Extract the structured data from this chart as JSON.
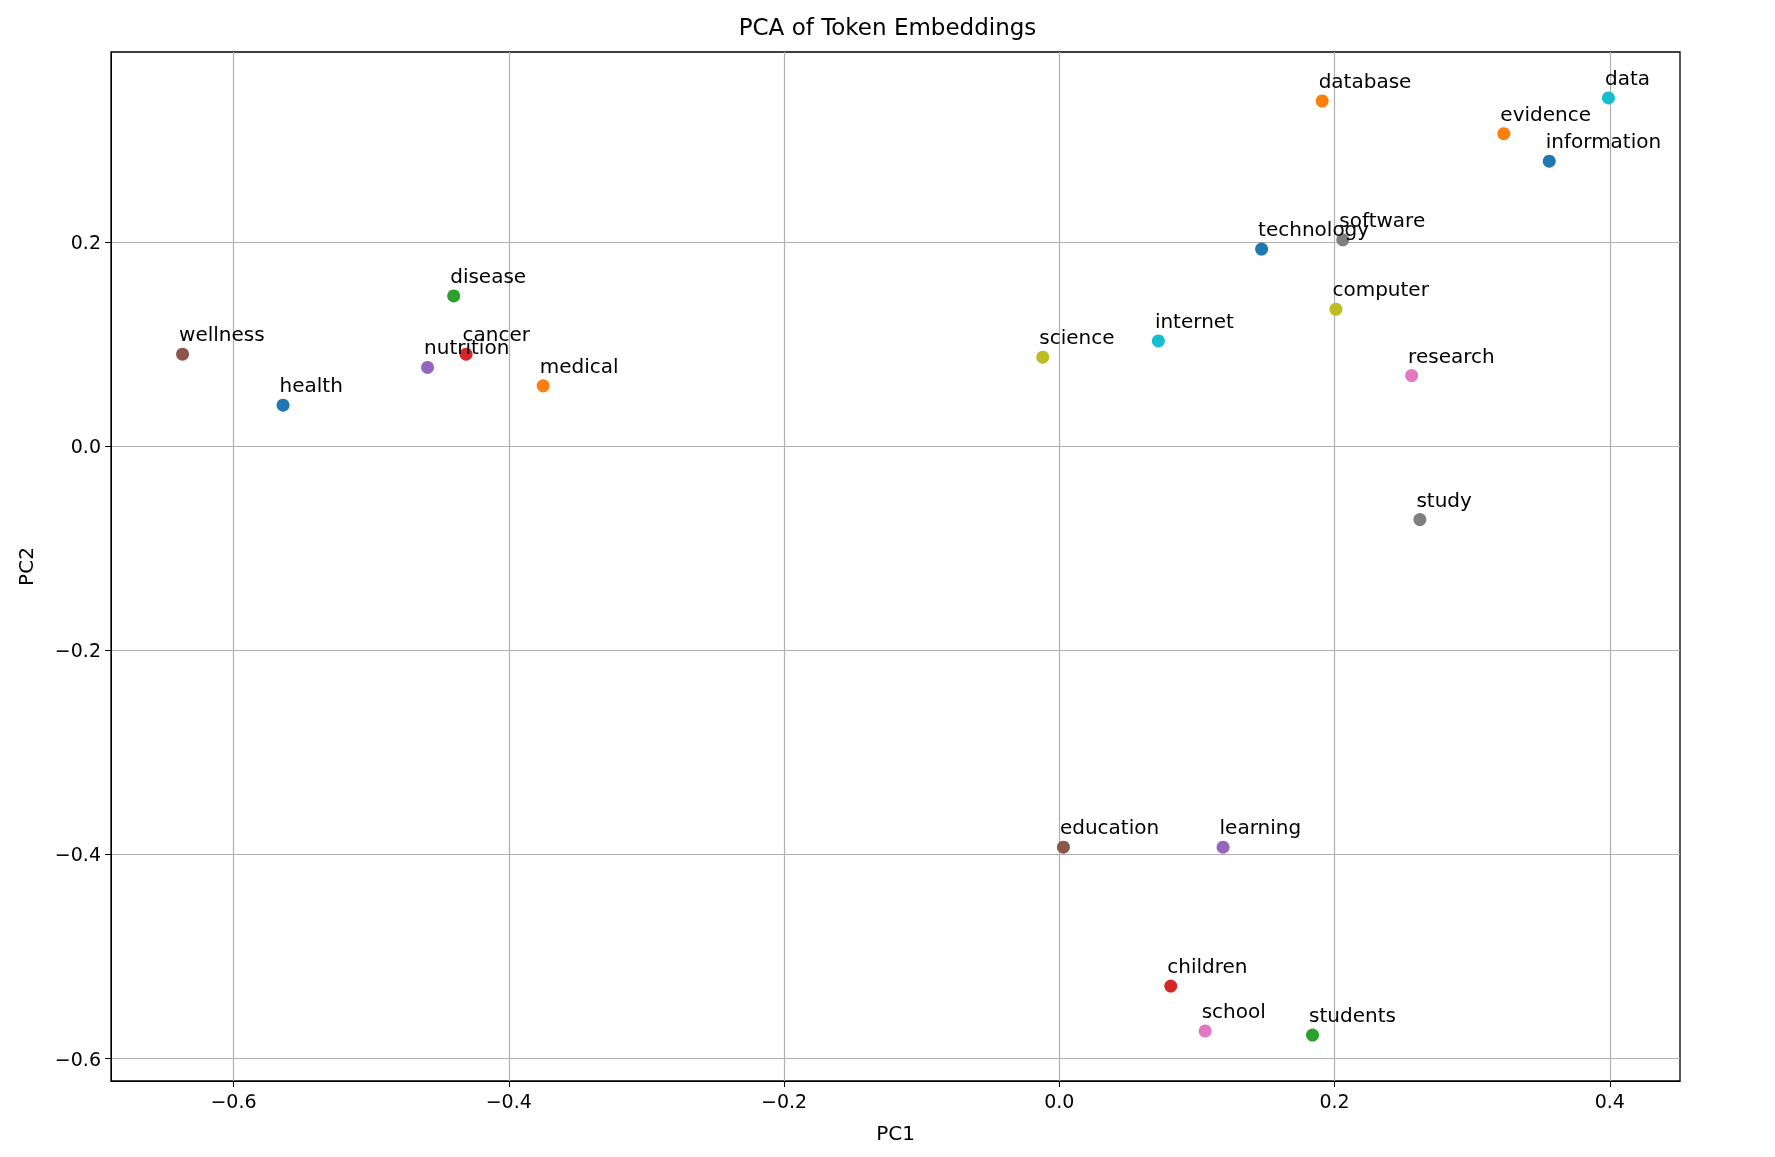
{
  "chart_data": {
    "type": "scatter",
    "title": "PCA of Token Embeddings",
    "xlabel": "PC1",
    "ylabel": "PC2",
    "xlim": [
      -0.689,
      0.451
    ],
    "ylim": [
      -0.622,
      0.386
    ],
    "xticks": [
      {
        "value": -0.6,
        "label": "−0.6"
      },
      {
        "value": -0.4,
        "label": "−0.4"
      },
      {
        "value": -0.2,
        "label": "−0.2"
      },
      {
        "value": 0,
        "label": "0.0"
      },
      {
        "value": 0.2,
        "label": "0.2"
      },
      {
        "value": 0.4,
        "label": "0.4"
      }
    ],
    "yticks": [
      {
        "value": -0.6,
        "label": "−0.6"
      },
      {
        "value": -0.4,
        "label": "−0.4"
      },
      {
        "value": -0.2,
        "label": "−0.2"
      },
      {
        "value": 0,
        "label": "0.0"
      },
      {
        "value": 0.2,
        "label": "0.2"
      }
    ],
    "grid": true,
    "legend": false,
    "marker": "circle",
    "series": [
      {
        "name": "health",
        "color": "#1f77b4",
        "x": [
          -0.564
        ],
        "values": [
          0.04
        ]
      },
      {
        "name": "medical",
        "color": "#ff7f0e",
        "x": [
          -0.375
        ],
        "values": [
          0.059
        ]
      },
      {
        "name": "disease",
        "color": "#2ca02c",
        "x": [
          -0.44
        ],
        "values": [
          0.147
        ]
      },
      {
        "name": "cancer",
        "color": "#d62728",
        "x": [
          -0.431
        ],
        "values": [
          0.09
        ]
      },
      {
        "name": "nutrition",
        "color": "#9467bd",
        "x": [
          -0.459
        ],
        "values": [
          0.077
        ]
      },
      {
        "name": "wellness",
        "color": "#8c564b",
        "x": [
          -0.637
        ],
        "values": [
          0.09
        ]
      },
      {
        "name": "research",
        "color": "#e377c2",
        "x": [
          0.256
        ],
        "values": [
          0.069
        ]
      },
      {
        "name": "study",
        "color": "#7f7f7f",
        "x": [
          0.262
        ],
        "values": [
          -0.072
        ]
      },
      {
        "name": "science",
        "color": "#bcbd22",
        "x": [
          -0.012
        ],
        "values": [
          0.087
        ]
      },
      {
        "name": "internet",
        "color": "#17becf",
        "x": [
          0.072
        ],
        "values": [
          0.103
        ]
      },
      {
        "name": "information",
        "color": "#1f77b4",
        "x": [
          0.356
        ],
        "values": [
          0.279
        ]
      },
      {
        "name": "evidence",
        "color": "#ff7f0e",
        "x": [
          0.323
        ],
        "values": [
          0.306
        ]
      },
      {
        "name": "students",
        "color": "#2ca02c",
        "x": [
          0.184
        ],
        "values": [
          -0.577
        ]
      },
      {
        "name": "children",
        "color": "#d62728",
        "x": [
          0.081
        ],
        "values": [
          -0.529
        ]
      },
      {
        "name": "learning",
        "color": "#9467bd",
        "x": [
          0.119
        ],
        "values": [
          -0.393
        ]
      },
      {
        "name": "education",
        "color": "#8c564b",
        "x": [
          0.003
        ],
        "values": [
          -0.393
        ]
      },
      {
        "name": "school",
        "color": "#e377c2",
        "x": [
          0.106
        ],
        "values": [
          -0.573
        ]
      },
      {
        "name": "software",
        "color": "#7f7f7f",
        "x": [
          0.206
        ],
        "values": [
          0.202
        ]
      },
      {
        "name": "computer",
        "color": "#bcbd22",
        "x": [
          0.201
        ],
        "values": [
          0.134
        ]
      },
      {
        "name": "data",
        "color": "#17becf",
        "x": [
          0.399
        ],
        "values": [
          0.341
        ]
      },
      {
        "name": "technology",
        "color": "#1f77b4",
        "x": [
          0.147
        ],
        "values": [
          0.193
        ]
      },
      {
        "name": "database",
        "color": "#ff7f0e",
        "x": [
          0.191
        ],
        "values": [
          0.338
        ]
      }
    ]
  }
}
